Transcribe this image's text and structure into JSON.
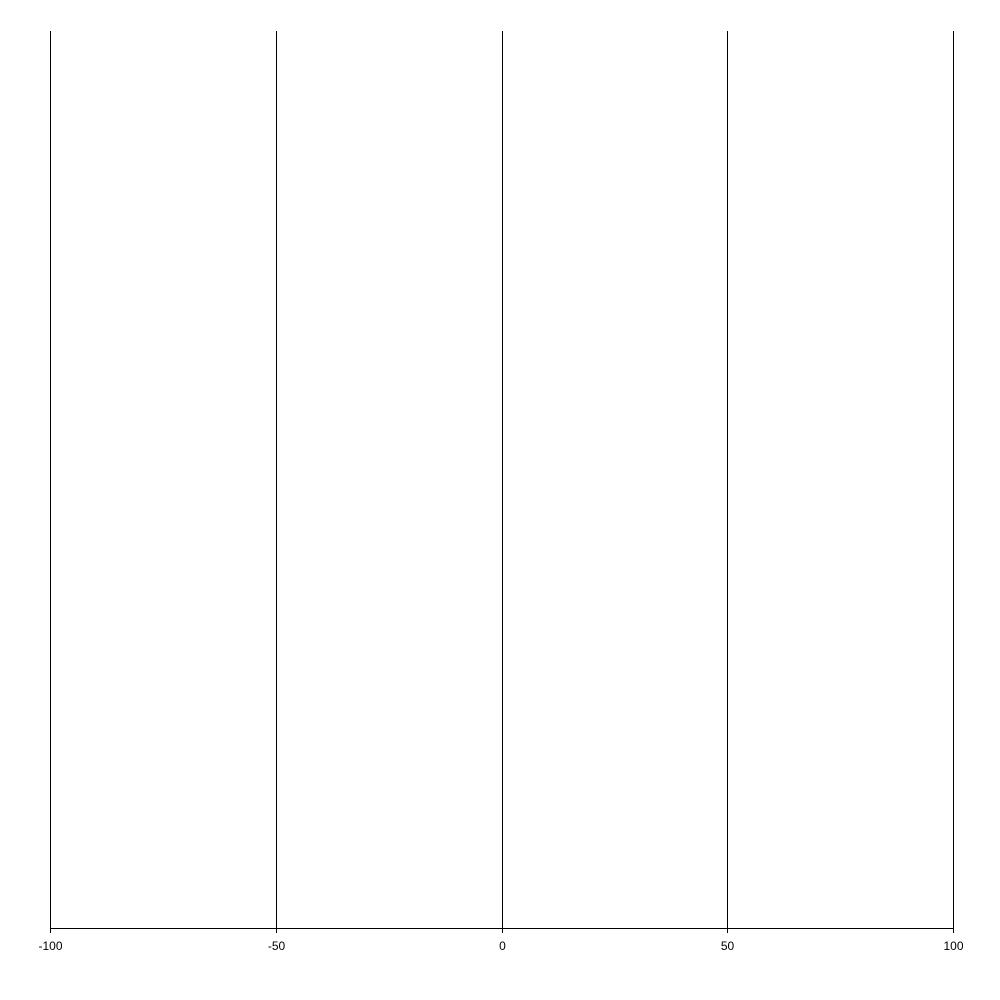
{
  "chart_data": {
    "type": "scatter",
    "title": "",
    "xlabel": "",
    "ylabel": "",
    "xlim": [
      -100,
      100
    ],
    "x_ticks": [
      -100,
      -50,
      0,
      50,
      100
    ],
    "x_tick_labels": [
      "-100",
      "-50",
      "0",
      "50",
      "100"
    ],
    "grid": "vertical",
    "series": [],
    "colors": {
      "grid": "#000000",
      "axis": "#000000",
      "background": "#ffffff"
    }
  }
}
